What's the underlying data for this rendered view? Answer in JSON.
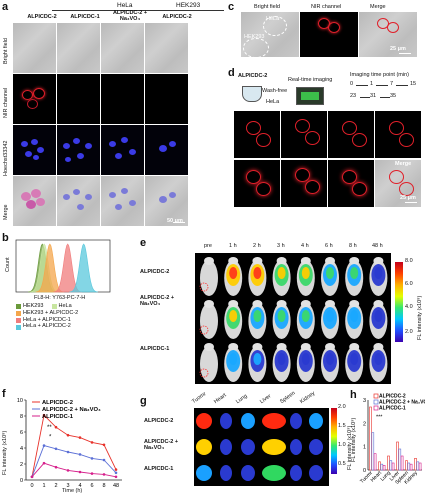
{
  "panels": {
    "a": {
      "label": "a",
      "group_hela": "HeLa",
      "group_hek": "HEK293",
      "cols": [
        "ALPICDC-2",
        "ALPICDC-1",
        "ALPICDC-2 + Na₃VO₄",
        "ALPICDC-2"
      ],
      "rows": [
        "Bright field",
        "NIR channel",
        "Hoechst33342",
        "Merge"
      ],
      "scale": "50 μm"
    },
    "b": {
      "label": "b",
      "xlabel": "FL8-H: Y763-PC-7-H",
      "ylabel": "Count",
      "legend": [
        "HEK293",
        "HeLa",
        "HEK293 + ALPICDC-2",
        "HeLa + ALPICDC-1",
        "HeLa + ALPICDC-2"
      ],
      "colors": [
        "#6a9a3a",
        "#c8e6a0",
        "#f4a64b",
        "#f07c7c",
        "#59c8dc"
      ]
    },
    "c": {
      "label": "c",
      "cols": [
        "Bright field",
        "NIR channel",
        "Merge"
      ],
      "hela": "HeLa",
      "hek": "HEK293",
      "scale": "25 μm"
    },
    "d": {
      "label": "d",
      "probe": "ALPICDC-2",
      "step1": "Wash-free",
      "cell": "HeLa",
      "step2": "Real-time imaging",
      "timing_title": "Imaging time point (min)",
      "times": [
        "0",
        "1",
        "7",
        "15",
        "23",
        "31",
        "35"
      ],
      "merge": "Merge",
      "scale": "25 μm"
    },
    "e": {
      "label": "e",
      "times": [
        "pre",
        "1 h",
        "2 h",
        "3 h",
        "4 h",
        "6 h",
        "8 h",
        "48 h"
      ],
      "rows": [
        "ALPICDC-2",
        "ALPICDC-2 + Na₃VO₄",
        "ALPICDC-1"
      ],
      "cbar_label": "FL intensity (x10⁸)",
      "cbar_ticks": [
        "8.0",
        "6.0",
        "4.0",
        "2.0"
      ]
    },
    "f": {
      "label": "f",
      "xlabel": "Time (h)",
      "ylabel": "FL intensity (x10⁸)",
      "sig1": "**",
      "sig2": "*"
    },
    "g": {
      "label": "g",
      "organs": [
        "Tuomr",
        "Heart",
        "Lung",
        "Liver",
        "Spleen",
        "Kidney"
      ],
      "rows": [
        "ALPICDC-2",
        "ALPICDC-2 + Na₃VO₄",
        "ALPICDC-1"
      ],
      "cbar_label": "FL intensity (x10⁹)",
      "cbar_ticks": [
        "2.0",
        "1.5",
        "1.0",
        "0.5"
      ]
    },
    "h": {
      "label": "h",
      "ylabel": "FL intensity (x10⁹)",
      "sig": "***"
    }
  },
  "chart_data": [
    {
      "type": "line",
      "panel": "f",
      "x": [
        0,
        1,
        2,
        3,
        4,
        6,
        8,
        48
      ],
      "xlabel": "Time (h)",
      "ylabel": "FL intensity (x10⁸)",
      "ylim": [
        0,
        10
      ],
      "yticks": [
        0,
        2,
        4,
        6,
        8,
        10
      ],
      "series": [
        {
          "name": "ALPICDC-2",
          "color": "#e8312a",
          "values": [
            0.4,
            8.1,
            6.6,
            5.6,
            5.3,
            4.7,
            4.4,
            1.3
          ]
        },
        {
          "name": "ALPICDC-2 + Na₃VO₄",
          "color": "#5b6fd6",
          "values": [
            0.4,
            4.3,
            3.9,
            3.5,
            3.2,
            2.7,
            2.5,
            0.9
          ]
        },
        {
          "name": "ALPICDC-1",
          "color": "#d61f8b",
          "values": [
            0.4,
            2.1,
            1.6,
            1.2,
            1.0,
            0.8,
            0.7,
            0.4
          ]
        }
      ]
    },
    {
      "type": "bar",
      "panel": "h",
      "categories": [
        "Tuomr",
        "Heart",
        "Lung",
        "Liver",
        "Spleen",
        "Kidney"
      ],
      "ylabel": "FL intensity (x10⁹)",
      "ylim": [
        0,
        3
      ],
      "yticks": [
        0,
        1,
        2,
        3
      ],
      "series": [
        {
          "name": "ALPICDC-2",
          "color": "#e8312a",
          "values": [
            2.7,
            0.35,
            0.6,
            1.2,
            0.4,
            0.5
          ]
        },
        {
          "name": "ALPICDC-2 + Na₃VO₄",
          "color": "#5b6fd6",
          "values": [
            1.6,
            0.25,
            0.4,
            0.9,
            0.3,
            0.35
          ]
        },
        {
          "name": "ALPICDC-1",
          "color": "#d61f8b",
          "values": [
            0.7,
            0.2,
            0.3,
            0.6,
            0.25,
            0.3
          ]
        }
      ]
    },
    {
      "type": "area",
      "panel": "b",
      "series": [
        {
          "name": "HEK293",
          "color": "#6a9a3a",
          "peak": 0.28
        },
        {
          "name": "HeLa",
          "color": "#c8e6a0",
          "peak": 0.3
        },
        {
          "name": "HEK293 + ALPICDC-2",
          "color": "#f4a64b",
          "peak": 0.36
        },
        {
          "name": "HeLa + ALPICDC-1",
          "color": "#f07c7c",
          "peak": 0.55
        },
        {
          "name": "HeLa + ALPICDC-2",
          "color": "#59c8dc",
          "peak": 0.72
        }
      ]
    }
  ]
}
